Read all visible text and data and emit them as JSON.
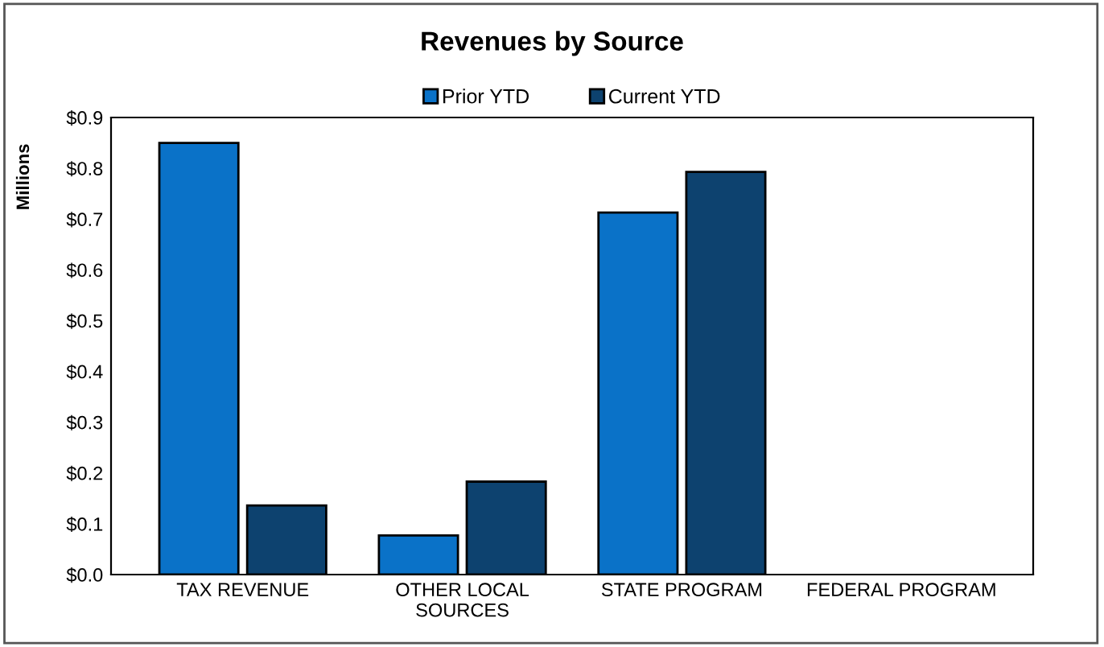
{
  "chart_data": {
    "type": "bar",
    "title": "Revenues by Source",
    "ylabel": "Millions",
    "categories": [
      "TAX REVENUE",
      "OTHER LOCAL\nSOURCES",
      "STATE PROGRAM",
      "FEDERAL PROGRAM"
    ],
    "series": [
      {
        "name": "Prior YTD",
        "color": "#0a72c8",
        "values": [
          0.85,
          0.077,
          0.713,
          0
        ]
      },
      {
        "name": "Current YTD",
        "color": "#0d426f",
        "values": [
          0.136,
          0.183,
          0.793,
          0
        ]
      }
    ],
    "ylim": [
      0,
      0.9
    ],
    "yticks": [
      {
        "value": 0,
        "label": "$0.0"
      },
      {
        "value": 0.1,
        "label": "$0.1"
      },
      {
        "value": 0.2,
        "label": "$0.2"
      },
      {
        "value": 0.3,
        "label": "$0.3"
      },
      {
        "value": 0.4,
        "label": "$0.4"
      },
      {
        "value": 0.5,
        "label": "$0.5"
      },
      {
        "value": 0.6,
        "label": "$0.6"
      },
      {
        "value": 0.7,
        "label": "$0.7"
      },
      {
        "value": 0.8,
        "label": "$0.8"
      },
      {
        "value": 0.9,
        "label": "$0.9"
      }
    ],
    "legend": "top",
    "grid": false
  }
}
